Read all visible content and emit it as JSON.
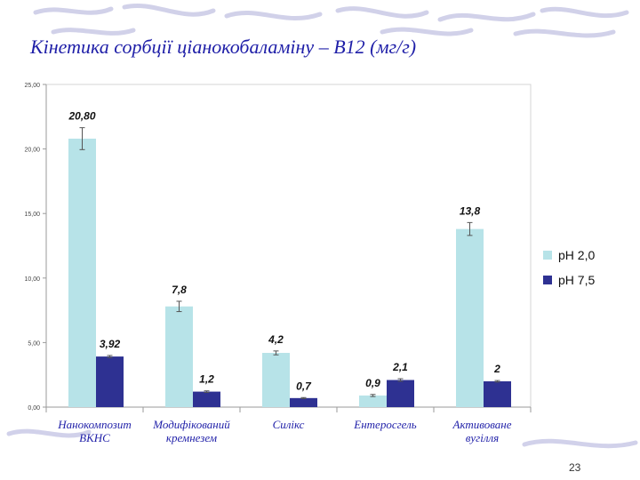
{
  "slide": {
    "title": "Кінетика сорбції ціанокобаламіну – В12 (мг/г)",
    "page_number": "23"
  },
  "chart_data": {
    "type": "bar",
    "title": "Кінетика сорбції ціанокобаламіну – В12 (мг/г)",
    "categories": [
      [
        "Нанокомпозит",
        "ВКНС"
      ],
      [
        "Модифікований",
        "кремнезем"
      ],
      [
        "Силікс"
      ],
      [
        "Ентеросгель"
      ],
      [
        "Активоване",
        "вугілля"
      ]
    ],
    "series": [
      {
        "name": "pH 2,0",
        "color": "#b7e3e8",
        "values": [
          20.8,
          7.8,
          4.2,
          0.9,
          13.8
        ],
        "labels": [
          "20,80",
          "7,8",
          "4,2",
          "0,9",
          "13,8"
        ],
        "errors": [
          0.85,
          0.4,
          0.15,
          0.08,
          0.5
        ]
      },
      {
        "name": "pH 7,5",
        "color": "#2e3192",
        "values": [
          3.92,
          1.2,
          0.7,
          2.1,
          2.0
        ],
        "labels": [
          "3,92",
          "1,2",
          "0,7",
          "2,1",
          "2"
        ],
        "errors": [
          0.08,
          0.06,
          0.04,
          0.1,
          0.06
        ]
      }
    ],
    "ylim": [
      0,
      25
    ],
    "yticks": [
      0,
      5,
      10,
      15,
      20,
      25
    ],
    "ytick_labels": [
      "0,00",
      "5,00",
      "10,00",
      "15,00",
      "20,00",
      "25,00"
    ],
    "grid": false,
    "legend_position": "right",
    "xlabel": "",
    "ylabel": ""
  }
}
